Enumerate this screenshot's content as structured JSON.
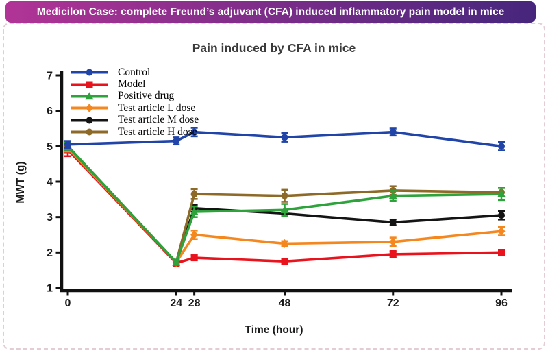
{
  "banner": {
    "title": "Medicilon Case: complete Freund’s adjuvant (CFA) induced inflammatory pain model in mice",
    "gradient_left": "#b13496",
    "gradient_right": "#46267c",
    "obscured_fragment": "complete Freund’s adjuvant (CFA) induced inflammatory pain model"
  },
  "chart_data": {
    "type": "line",
    "title": "Pain induced by CFA in mice",
    "xlabel": "Time (hour)",
    "ylabel": "MWT (g)",
    "x": [
      0,
      24,
      28,
      48,
      72,
      96
    ],
    "x_ticks": [
      "0",
      "24",
      "28",
      "48",
      "72",
      "96"
    ],
    "y_ticks": [
      1,
      2,
      3,
      4,
      5,
      6,
      7
    ],
    "ylim": [
      1,
      7
    ],
    "xlim": [
      0,
      98
    ],
    "grid": false,
    "error_bars": true,
    "legend_position": "upper-left-inside",
    "axis_color": "#111111",
    "series": [
      {
        "name": "Control",
        "color": "#2144a8",
        "marker": "circle",
        "values": [
          5.05,
          5.15,
          5.4,
          5.25,
          5.4,
          5.0
        ],
        "errors": [
          0.1,
          0.1,
          0.12,
          0.12,
          0.1,
          0.12
        ]
      },
      {
        "name": "Model",
        "color": "#e8131d",
        "marker": "square",
        "values": [
          4.9,
          1.7,
          1.85,
          1.75,
          1.95,
          2.0
        ],
        "errors": [
          0.18,
          0.08,
          0.07,
          0.06,
          0.09,
          0.07
        ]
      },
      {
        "name": "Positive drug",
        "color": "#2ea33c",
        "marker": "triangle",
        "values": [
          5.0,
          1.72,
          3.15,
          3.2,
          3.6,
          3.65
        ],
        "errors": [
          0.1,
          0.06,
          0.15,
          0.17,
          0.14,
          0.17
        ]
      },
      {
        "name": "Test article L dose",
        "color": "#f5871f",
        "marker": "diamond",
        "values": [
          4.95,
          1.72,
          2.5,
          2.25,
          2.3,
          2.6
        ],
        "errors": [
          0.1,
          0.06,
          0.12,
          0.07,
          0.12,
          0.12
        ]
      },
      {
        "name": "Test article M dose",
        "color": "#141414",
        "marker": "circle",
        "values": [
          5.0,
          1.72,
          3.25,
          3.1,
          2.85,
          3.05
        ],
        "errors": [
          0.1,
          0.06,
          0.1,
          0.07,
          0.08,
          0.12
        ]
      },
      {
        "name": "Test article H dose",
        "color": "#8e6a28",
        "marker": "circle",
        "values": [
          5.0,
          1.72,
          3.65,
          3.6,
          3.75,
          3.7
        ],
        "errors": [
          0.1,
          0.06,
          0.14,
          0.17,
          0.12,
          0.12
        ]
      }
    ]
  }
}
